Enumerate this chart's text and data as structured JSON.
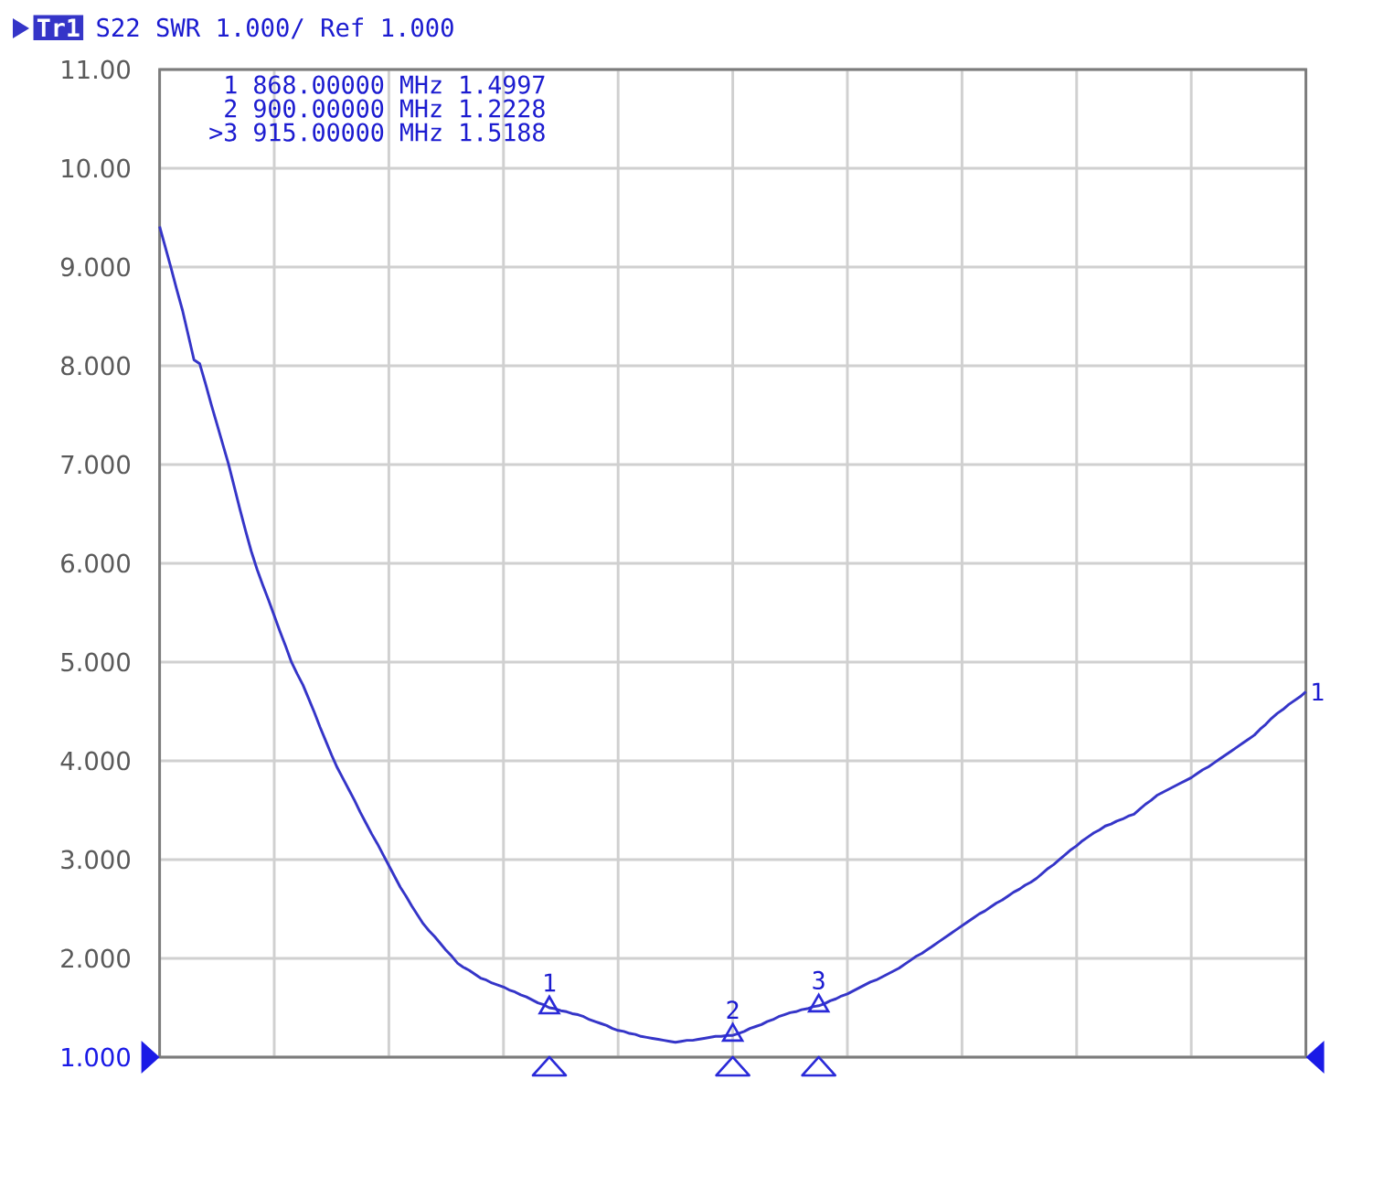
{
  "chart_data": {
    "type": "line",
    "title": "S22 SWR 1.000/ Ref 1.000",
    "categories": [
      null,
      null,
      null,
      null,
      null,
      null,
      null,
      null,
      null,
      null,
      null,
      null,
      null,
      null,
      null,
      null,
      null,
      null,
      null,
      null,
      null,
      null,
      null,
      null,
      null,
      null,
      null,
      null,
      null,
      null,
      null,
      null,
      null,
      null,
      null,
      null,
      null,
      null,
      null,
      null,
      null,
      null,
      null,
      null,
      null,
      null,
      null,
      null,
      null,
      null,
      null,
      null,
      null,
      null,
      null,
      null,
      null,
      null,
      null,
      null,
      null,
      null,
      null,
      null,
      null,
      null,
      null,
      null,
      null,
      null,
      null,
      null,
      null,
      null,
      null,
      null,
      null,
      null,
      null,
      null,
      null,
      null,
      null,
      null,
      null,
      null,
      null,
      null,
      null,
      null,
      null,
      null,
      null,
      null,
      null,
      null,
      null,
      null,
      null,
      null,
      null,
      null,
      null,
      null,
      null,
      null,
      null,
      null,
      null,
      null,
      null,
      null,
      null,
      null,
      null,
      null,
      null,
      null,
      null,
      null,
      null,
      null,
      null,
      null,
      null,
      null,
      null,
      null,
      null,
      null,
      null,
      null,
      null,
      null,
      null,
      null,
      null,
      null,
      null,
      null,
      null,
      null,
      null,
      null,
      null,
      null,
      null,
      null,
      null,
      null,
      null,
      null,
      null,
      null,
      null,
      null,
      null,
      null,
      null,
      null,
      null,
      null,
      null,
      null,
      null,
      null,
      null,
      null,
      null,
      null,
      null,
      null,
      null,
      null,
      null,
      null,
      null,
      null,
      null,
      null,
      null,
      null,
      null,
      null,
      null,
      null,
      null,
      null,
      null,
      null,
      null,
      null,
      null,
      null,
      null,
      null,
      null,
      null,
      null,
      null,
      null
    ],
    "ylim": [
      1,
      11
    ],
    "yticks": [
      {
        "value": 1,
        "label": "1.000"
      },
      {
        "value": 2,
        "label": "2.000"
      },
      {
        "value": 3,
        "label": "3.000"
      },
      {
        "value": 4,
        "label": "4.000"
      },
      {
        "value": 5,
        "label": "5.000"
      },
      {
        "value": 6,
        "label": "6.000"
      },
      {
        "value": 7,
        "label": "7.000"
      },
      {
        "value": 8,
        "label": "8.000"
      },
      {
        "value": 9,
        "label": "9.000"
      },
      {
        "value": 10,
        "label": "10.00"
      },
      {
        "value": 11,
        "label": "11.00"
      }
    ],
    "tick_labels": "y",
    "grid": true,
    "series": [
      {
        "name": "Tr1",
        "color": "#3535c8",
        "values": [
          9.41,
          9.2,
          8.99,
          8.77,
          8.56,
          8.31,
          8.06,
          8.02,
          7.82,
          7.61,
          7.41,
          7.21,
          7.01,
          6.78,
          6.55,
          6.33,
          6.12,
          5.94,
          5.78,
          5.63,
          5.47,
          5.31,
          5.16,
          5.0,
          4.88,
          4.77,
          4.63,
          4.49,
          4.34,
          4.2,
          4.06,
          3.93,
          3.82,
          3.71,
          3.6,
          3.48,
          3.37,
          3.26,
          3.16,
          3.05,
          2.94,
          2.83,
          2.72,
          2.63,
          2.53,
          2.44,
          2.35,
          2.28,
          2.22,
          2.15,
          2.08,
          2.02,
          1.95,
          1.91,
          1.88,
          1.84,
          1.8,
          1.78,
          1.75,
          1.73,
          1.71,
          1.68,
          1.66,
          1.63,
          1.61,
          1.58,
          1.55,
          1.53,
          1.5,
          1.49,
          1.47,
          1.46,
          1.44,
          1.43,
          1.41,
          1.38,
          1.36,
          1.34,
          1.32,
          1.29,
          1.27,
          1.26,
          1.24,
          1.23,
          1.21,
          1.2,
          1.19,
          1.18,
          1.17,
          1.16,
          1.15,
          1.16,
          1.17,
          1.17,
          1.18,
          1.19,
          1.2,
          1.21,
          1.21,
          1.22,
          1.22,
          1.24,
          1.26,
          1.29,
          1.31,
          1.33,
          1.36,
          1.38,
          1.41,
          1.43,
          1.45,
          1.46,
          1.48,
          1.49,
          1.51,
          1.52,
          1.54,
          1.57,
          1.59,
          1.62,
          1.64,
          1.67,
          1.7,
          1.73,
          1.76,
          1.78,
          1.81,
          1.84,
          1.87,
          1.9,
          1.94,
          1.98,
          2.02,
          2.05,
          2.09,
          2.13,
          2.17,
          2.21,
          2.25,
          2.29,
          2.33,
          2.37,
          2.41,
          2.45,
          2.48,
          2.52,
          2.56,
          2.59,
          2.63,
          2.67,
          2.7,
          2.74,
          2.77,
          2.81,
          2.86,
          2.91,
          2.95,
          3.0,
          3.05,
          3.1,
          3.14,
          3.19,
          3.23,
          3.27,
          3.3,
          3.34,
          3.36,
          3.39,
          3.41,
          3.44,
          3.46,
          3.51,
          3.56,
          3.6,
          3.65,
          3.68,
          3.71,
          3.74,
          3.77,
          3.8,
          3.83,
          3.87,
          3.91,
          3.94,
          3.98,
          4.02,
          4.06,
          4.1,
          4.14,
          4.18,
          4.22,
          4.26,
          4.32,
          4.37,
          4.43,
          4.48,
          4.52,
          4.57,
          4.61,
          4.65,
          4.7
        ]
      },
      {
        "name": "1",
        "type": "scatter",
        "marker": "triangle",
        "color": "#2a2ad8",
        "values": [
          null,
          null,
          null,
          null,
          null,
          null,
          null,
          null,
          null,
          null,
          null,
          null,
          null,
          null,
          null,
          null,
          null,
          null,
          null,
          null,
          null,
          null,
          null,
          null,
          null,
          null,
          null,
          null,
          null,
          null,
          null,
          null,
          null,
          null,
          null,
          null,
          null,
          null,
          null,
          null,
          null,
          null,
          null,
          null,
          null,
          null,
          null,
          null,
          null,
          null,
          null,
          null,
          null,
          null,
          null,
          null,
          null,
          null,
          null,
          null,
          null,
          null,
          null,
          null,
          null,
          null,
          null,
          null,
          1.4997,
          null,
          null,
          null,
          null,
          null,
          null,
          null,
          null,
          null,
          null,
          null,
          null,
          null,
          null,
          null,
          null,
          null,
          null,
          null,
          null,
          null,
          null,
          null,
          null,
          null,
          null,
          null,
          null,
          null,
          null,
          null,
          null,
          null,
          null,
          null,
          null,
          null,
          null,
          null,
          null,
          null,
          null,
          null,
          null,
          null,
          null,
          null,
          null,
          null,
          null,
          null,
          null,
          null,
          null,
          null,
          null,
          null,
          null,
          null,
          null,
          null,
          null,
          null,
          null,
          null,
          null,
          null,
          null,
          null,
          null,
          null,
          null,
          null,
          null,
          null,
          null,
          null,
          null,
          null,
          null,
          null,
          null,
          null,
          null,
          null,
          null,
          null,
          null,
          null,
          null,
          null,
          null,
          null,
          null,
          null,
          null,
          null,
          null,
          null,
          null,
          null,
          null,
          null,
          null,
          null,
          null,
          null,
          null,
          null,
          null,
          null,
          null,
          null,
          null,
          null,
          null,
          null,
          null,
          null,
          null,
          null,
          null,
          null,
          null,
          null,
          null,
          null,
          null,
          null,
          null,
          null,
          null
        ]
      },
      {
        "name": "2",
        "type": "scatter",
        "marker": "triangle",
        "color": "#2a2ad8",
        "values": [
          null,
          null,
          null,
          null,
          null,
          null,
          null,
          null,
          null,
          null,
          null,
          null,
          null,
          null,
          null,
          null,
          null,
          null,
          null,
          null,
          null,
          null,
          null,
          null,
          null,
          null,
          null,
          null,
          null,
          null,
          null,
          null,
          null,
          null,
          null,
          null,
          null,
          null,
          null,
          null,
          null,
          null,
          null,
          null,
          null,
          null,
          null,
          null,
          null,
          null,
          null,
          null,
          null,
          null,
          null,
          null,
          null,
          null,
          null,
          null,
          null,
          null,
          null,
          null,
          null,
          null,
          null,
          null,
          null,
          null,
          null,
          null,
          null,
          null,
          null,
          null,
          null,
          null,
          null,
          null,
          null,
          null,
          null,
          null,
          null,
          null,
          null,
          null,
          null,
          null,
          null,
          null,
          null,
          null,
          null,
          null,
          null,
          null,
          null,
          null,
          1.2228,
          null,
          null,
          null,
          null,
          null,
          null,
          null,
          null,
          null,
          null,
          null,
          null,
          null,
          null,
          null,
          null,
          null,
          null,
          null,
          null,
          null,
          null,
          null,
          null,
          null,
          null,
          null,
          null,
          null,
          null,
          null,
          null,
          null,
          null,
          null,
          null,
          null,
          null,
          null,
          null,
          null,
          null,
          null,
          null,
          null,
          null,
          null,
          null,
          null,
          null,
          null,
          null,
          null,
          null,
          null,
          null,
          null,
          null,
          null,
          null,
          null,
          null,
          null,
          null,
          null,
          null,
          null,
          null,
          null,
          null,
          null,
          null,
          null,
          null,
          null,
          null,
          null,
          null,
          null,
          null,
          null,
          null,
          null,
          null,
          null,
          null,
          null,
          null,
          null,
          null,
          null,
          null,
          null,
          null,
          null,
          null,
          null,
          null,
          null,
          null
        ]
      },
      {
        "name": "3",
        "type": "scatter",
        "marker": "triangle",
        "color": "#2a2ad8",
        "values": [
          null,
          null,
          null,
          null,
          null,
          null,
          null,
          null,
          null,
          null,
          null,
          null,
          null,
          null,
          null,
          null,
          null,
          null,
          null,
          null,
          null,
          null,
          null,
          null,
          null,
          null,
          null,
          null,
          null,
          null,
          null,
          null,
          null,
          null,
          null,
          null,
          null,
          null,
          null,
          null,
          null,
          null,
          null,
          null,
          null,
          null,
          null,
          null,
          null,
          null,
          null,
          null,
          null,
          null,
          null,
          null,
          null,
          null,
          null,
          null,
          null,
          null,
          null,
          null,
          null,
          null,
          null,
          null,
          null,
          null,
          null,
          null,
          null,
          null,
          null,
          null,
          null,
          null,
          null,
          null,
          null,
          null,
          null,
          null,
          null,
          null,
          null,
          null,
          null,
          null,
          null,
          null,
          null,
          null,
          null,
          null,
          null,
          null,
          null,
          null,
          null,
          null,
          null,
          null,
          null,
          null,
          null,
          null,
          null,
          null,
          null,
          null,
          null,
          null,
          null,
          1.5188,
          null,
          null,
          null,
          null,
          null,
          null,
          null,
          null,
          null,
          null,
          null,
          null,
          null,
          null,
          null,
          null,
          null,
          null,
          null,
          null,
          null,
          null,
          null,
          null,
          null,
          null,
          null,
          null,
          null,
          null,
          null,
          null,
          null,
          null,
          null,
          null,
          null,
          null,
          null,
          null,
          null,
          null,
          null,
          null,
          null,
          null,
          null,
          null,
          null,
          null,
          null,
          null,
          null,
          null,
          null,
          null,
          null,
          null,
          null,
          null,
          null,
          null,
          null,
          null,
          null,
          null,
          null,
          null,
          null,
          null,
          null,
          null,
          null,
          null,
          null,
          null,
          null,
          null,
          null,
          null,
          null,
          null,
          null,
          null,
          null
        ]
      }
    ],
    "annotations": [
      "1 868.00000 MHz 1.4997",
      "2 900.00000 MHz 1.2228",
      ">3 915.00000 MHz 1.5188",
      "1"
    ]
  }
}
